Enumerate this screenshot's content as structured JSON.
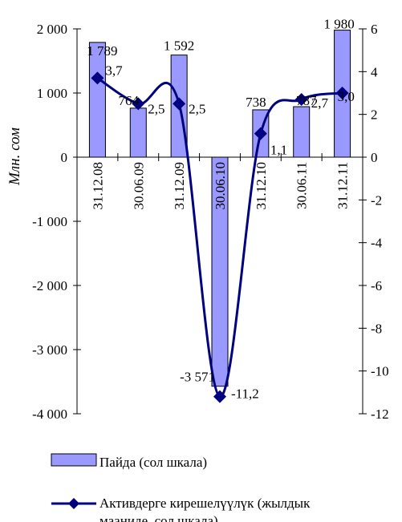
{
  "chart_data": {
    "type": "bar",
    "categories": [
      "31.12.08",
      "30.06.09",
      "31.12.09",
      "30.06.10",
      "31.12.10",
      "30.06.11",
      "31.12.11"
    ],
    "ylabel": "Млн. сом",
    "ylim": [
      -4000,
      2000
    ],
    "yticks": [
      2000,
      1000,
      0,
      -1000,
      -2000,
      -3000,
      -4000
    ],
    "ytick_labels": [
      "2 000",
      "1 000",
      "0",
      "-1 000",
      "-2 000",
      "-3 000",
      "-4 000"
    ],
    "y2lim": [
      -12,
      6
    ],
    "y2ticks": [
      6,
      4,
      2,
      0,
      -2,
      -4,
      -6,
      -8,
      -10,
      -12
    ],
    "y2tick_labels": [
      "6",
      "4",
      "2",
      "0",
      "-2",
      "-4",
      "-6",
      "-8",
      "-10",
      "-12"
    ],
    "legend_position": "bottom",
    "series": [
      {
        "name": "Пайда (сол шкала)",
        "kind": "bar",
        "axis": "left",
        "color": "#9999ff",
        "values": [
          1789,
          764,
          1592,
          -3571,
          738,
          787,
          1980
        ],
        "labels": [
          "1 789",
          "764",
          "1 592",
          "-3 571",
          "738",
          "787",
          "1 980"
        ]
      },
      {
        "name": "Активдерге кирешелүүлүк (жылдык мааниде, сол шкала)",
        "kind": "line",
        "axis": "right",
        "color": "#000080",
        "marker": "diamond",
        "values": [
          3.7,
          2.5,
          2.5,
          -11.2,
          1.1,
          2.7,
          3.0
        ],
        "labels": [
          "3,7",
          "2,5",
          "2,5",
          "-11,2",
          "1,1",
          "2,7",
          "3,0"
        ]
      }
    ]
  }
}
